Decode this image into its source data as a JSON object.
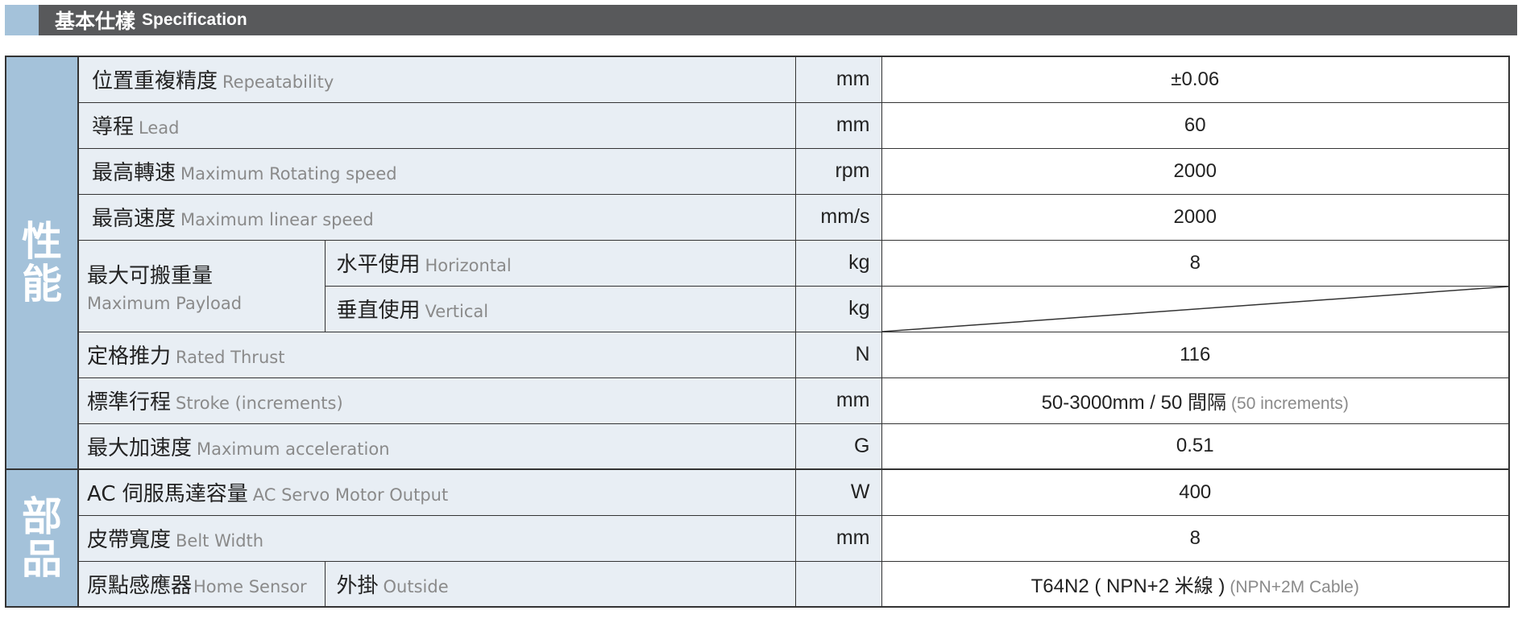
{
  "header": {
    "title_zh": "基本仕樣",
    "title_en": "Specification"
  },
  "groups": {
    "performance": "性能",
    "parts": "部品"
  },
  "rows": [
    {
      "zh": "位置重複精度",
      "en": "Repeatability",
      "unit": "mm",
      "value": "±0.06"
    },
    {
      "zh": "導程",
      "en": "Lead",
      "unit": "mm",
      "value": "60"
    },
    {
      "zh": "最高轉速",
      "en": "Maximum Rotating speed",
      "unit": "rpm",
      "value": "2000"
    },
    {
      "zh": "最高速度",
      "en": "Maximum linear speed",
      "unit": "mm/s",
      "value": "2000"
    },
    {
      "zh": "最大可搬重量",
      "en": "Maximum Payload",
      "sub_zh": "水平使用",
      "sub_en": "Horizontal",
      "unit": "kg",
      "value": "8"
    },
    {
      "sub_zh": "垂直使用",
      "sub_en": "Vertical",
      "unit": "kg",
      "value": ""
    },
    {
      "zh": "定格推力",
      "en": "Rated Thrust",
      "unit": "N",
      "value": "116"
    },
    {
      "zh": "標準行程",
      "en": "Stroke (increments)",
      "unit": "mm",
      "value": "50-3000mm / 50 間隔",
      "note": "(50 increments)"
    },
    {
      "zh": "最大加速度",
      "en": "Maximum acceleration",
      "unit": "G",
      "value": "0.51"
    },
    {
      "zh": "AC 伺服馬達容量",
      "en": "AC Servo Motor Output",
      "unit": "W",
      "value": "400"
    },
    {
      "zh": "皮帶寬度",
      "en": "Belt Width",
      "unit": "mm",
      "value": "8"
    },
    {
      "zh": "原點感應器",
      "en": "Home Sensor",
      "sub_zh": "外掛",
      "sub_en": "Outside",
      "unit": "",
      "value": "T64N2 ( NPN+2 米線 )",
      "note": "(NPN+2M Cable)"
    }
  ],
  "colors": {
    "header_bg": "#58595b",
    "accent": "#a4c2da",
    "label_bg": "#e8eef4"
  }
}
